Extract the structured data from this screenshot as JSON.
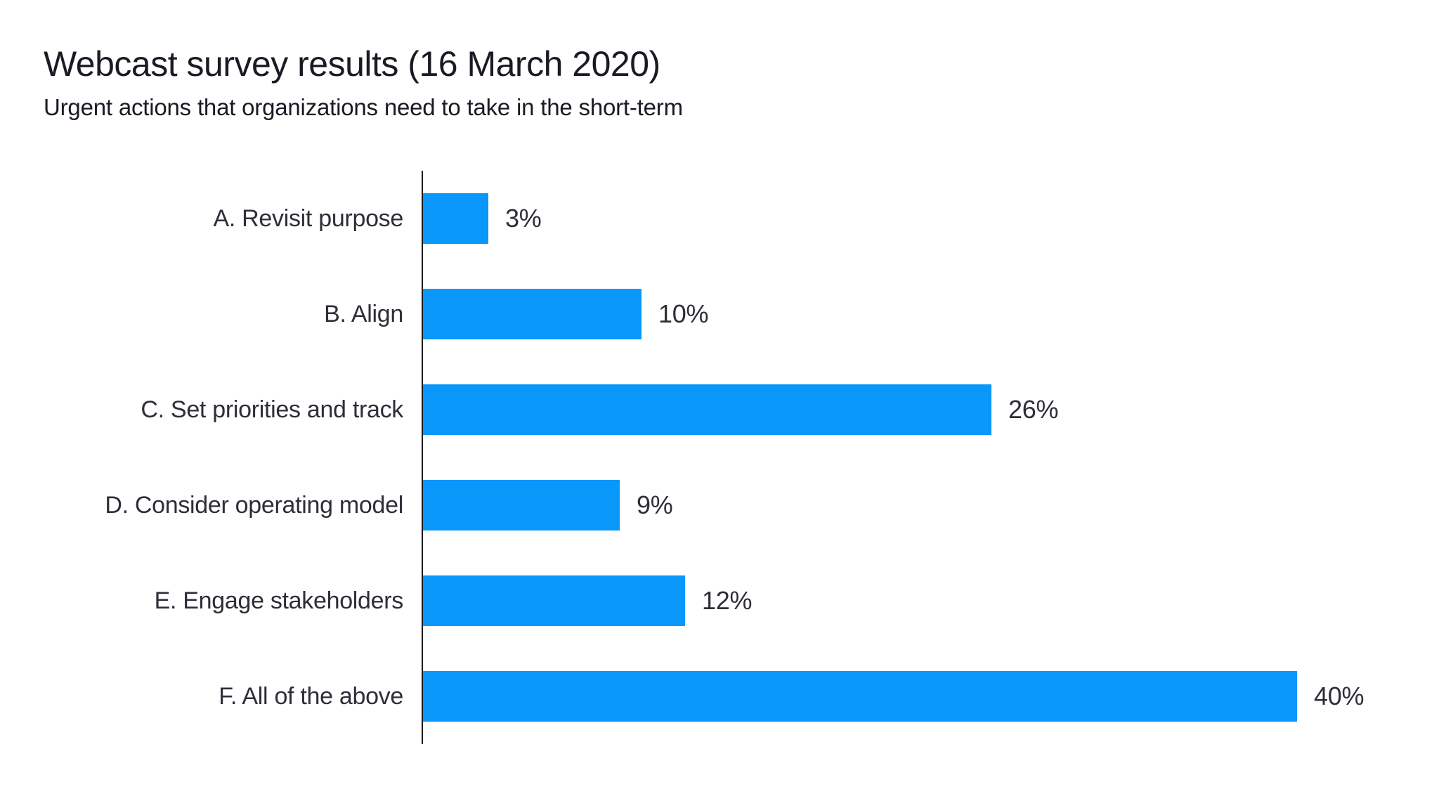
{
  "chart_data": {
    "type": "bar",
    "orientation": "horizontal",
    "title": "Webcast survey results (16 March 2020)",
    "subtitle": "Urgent actions that organizations need to take in the short-term",
    "categories": [
      "A. Revisit purpose",
      "B. Align",
      "C. Set priorities and track",
      "D. Consider operating model",
      "E. Engage stakeholders",
      "F. All of the above"
    ],
    "values": [
      3,
      10,
      26,
      9,
      12,
      40
    ],
    "value_labels": [
      "3%",
      "10%",
      "26%",
      "9%",
      "12%",
      "40%"
    ],
    "xlabel": "",
    "ylabel": "",
    "xlim": [
      0,
      45
    ],
    "grid": false,
    "legend": false,
    "bar_color": "#0997fa",
    "axis_color": "#1a1a24",
    "text_color": "#2e2e38",
    "background_color": "#ffffff"
  }
}
